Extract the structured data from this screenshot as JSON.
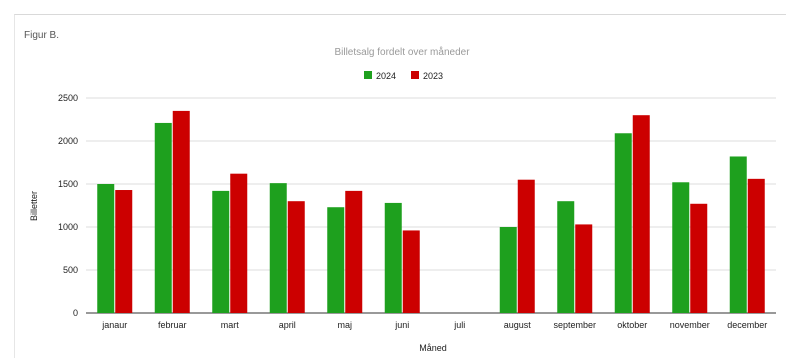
{
  "figure_label": "Figur B.",
  "colors": {
    "2024": "#1ea01e",
    "2023": "#cc0000",
    "grid": "#dcdcdc"
  },
  "chart_data": {
    "type": "bar",
    "title": "Billetsalg fordelt over måneder",
    "xlabel": "Måned",
    "ylabel": "Billetter",
    "ylim": [
      0,
      2500
    ],
    "yticks": [
      0,
      500,
      1000,
      1500,
      2000,
      2500
    ],
    "grid": true,
    "legend_position": "top-center",
    "categories": [
      "janaur",
      "februar",
      "mart",
      "april",
      "maj",
      "juni",
      "juli",
      "august",
      "september",
      "oktober",
      "november",
      "december"
    ],
    "series": [
      {
        "name": "2024",
        "color": "#1ea01e",
        "values": [
          1500,
          2210,
          1420,
          1510,
          1230,
          1280,
          0,
          1000,
          1300,
          2090,
          1520,
          1820
        ]
      },
      {
        "name": "2023",
        "color": "#cc0000",
        "values": [
          1430,
          2350,
          1620,
          1300,
          1420,
          960,
          0,
          1550,
          1030,
          2300,
          1270,
          1560
        ]
      }
    ]
  }
}
